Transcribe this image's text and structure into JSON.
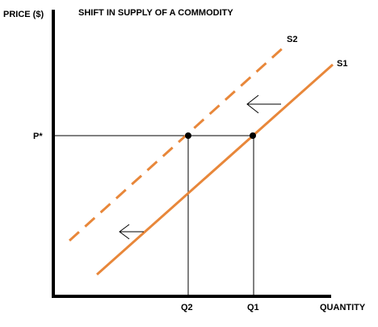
{
  "title": "SHIFT IN SUPPLY OF A COMMODITY",
  "y_axis_label": "PRICE ($)",
  "x_axis_label": "QUANTITY",
  "price_label": "P*",
  "q2_label": "Q2",
  "q1_label": "Q1",
  "s1_label": "S1",
  "s2_label": "S2",
  "colors": {
    "curve": "#e8873a",
    "axis": "#000000",
    "guide": "#000000"
  },
  "icons": [
    "left-arrow-icon",
    "left-arrow-icon"
  ]
}
